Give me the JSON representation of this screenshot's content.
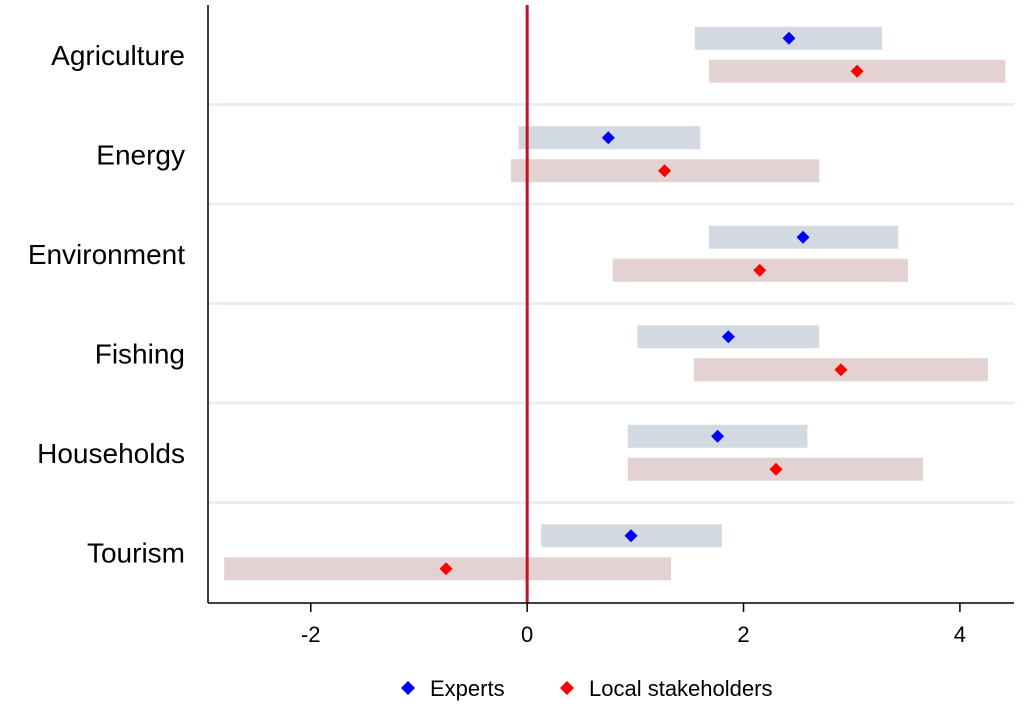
{
  "chart_data": {
    "type": "interval-dot",
    "title": "",
    "xlabel": "",
    "ylabel": "",
    "xlim": [
      -2.95,
      4.5
    ],
    "reference_line": 0,
    "xticks": [
      -2,
      0,
      2,
      4
    ],
    "categories": [
      "Agriculture",
      "Energy",
      "Environment",
      "Fishing",
      "Households",
      "Tourism"
    ],
    "series": [
      {
        "name": "Experts",
        "marker_color": "#0000ff",
        "band_color": "#d2d9e1",
        "points": [
          2.42,
          0.75,
          2.55,
          1.86,
          1.76,
          0.96
        ],
        "low": [
          1.55,
          -0.08,
          1.68,
          1.02,
          0.93,
          0.13
        ],
        "high": [
          3.28,
          1.6,
          3.43,
          2.7,
          2.59,
          1.8
        ]
      },
      {
        "name": "Local stakeholders",
        "marker_color": "#ff0000",
        "band_color": "#e4d2d2",
        "points": [
          3.05,
          1.27,
          2.15,
          2.9,
          2.3,
          -0.75
        ],
        "low": [
          1.68,
          -0.15,
          0.79,
          1.54,
          0.93,
          -2.8
        ],
        "high": [
          4.42,
          2.7,
          3.52,
          4.26,
          3.66,
          1.33
        ]
      }
    ],
    "colors": {
      "reference_line": "#c8102e",
      "gridline": "#e8eff2",
      "axis": "#000000"
    }
  }
}
